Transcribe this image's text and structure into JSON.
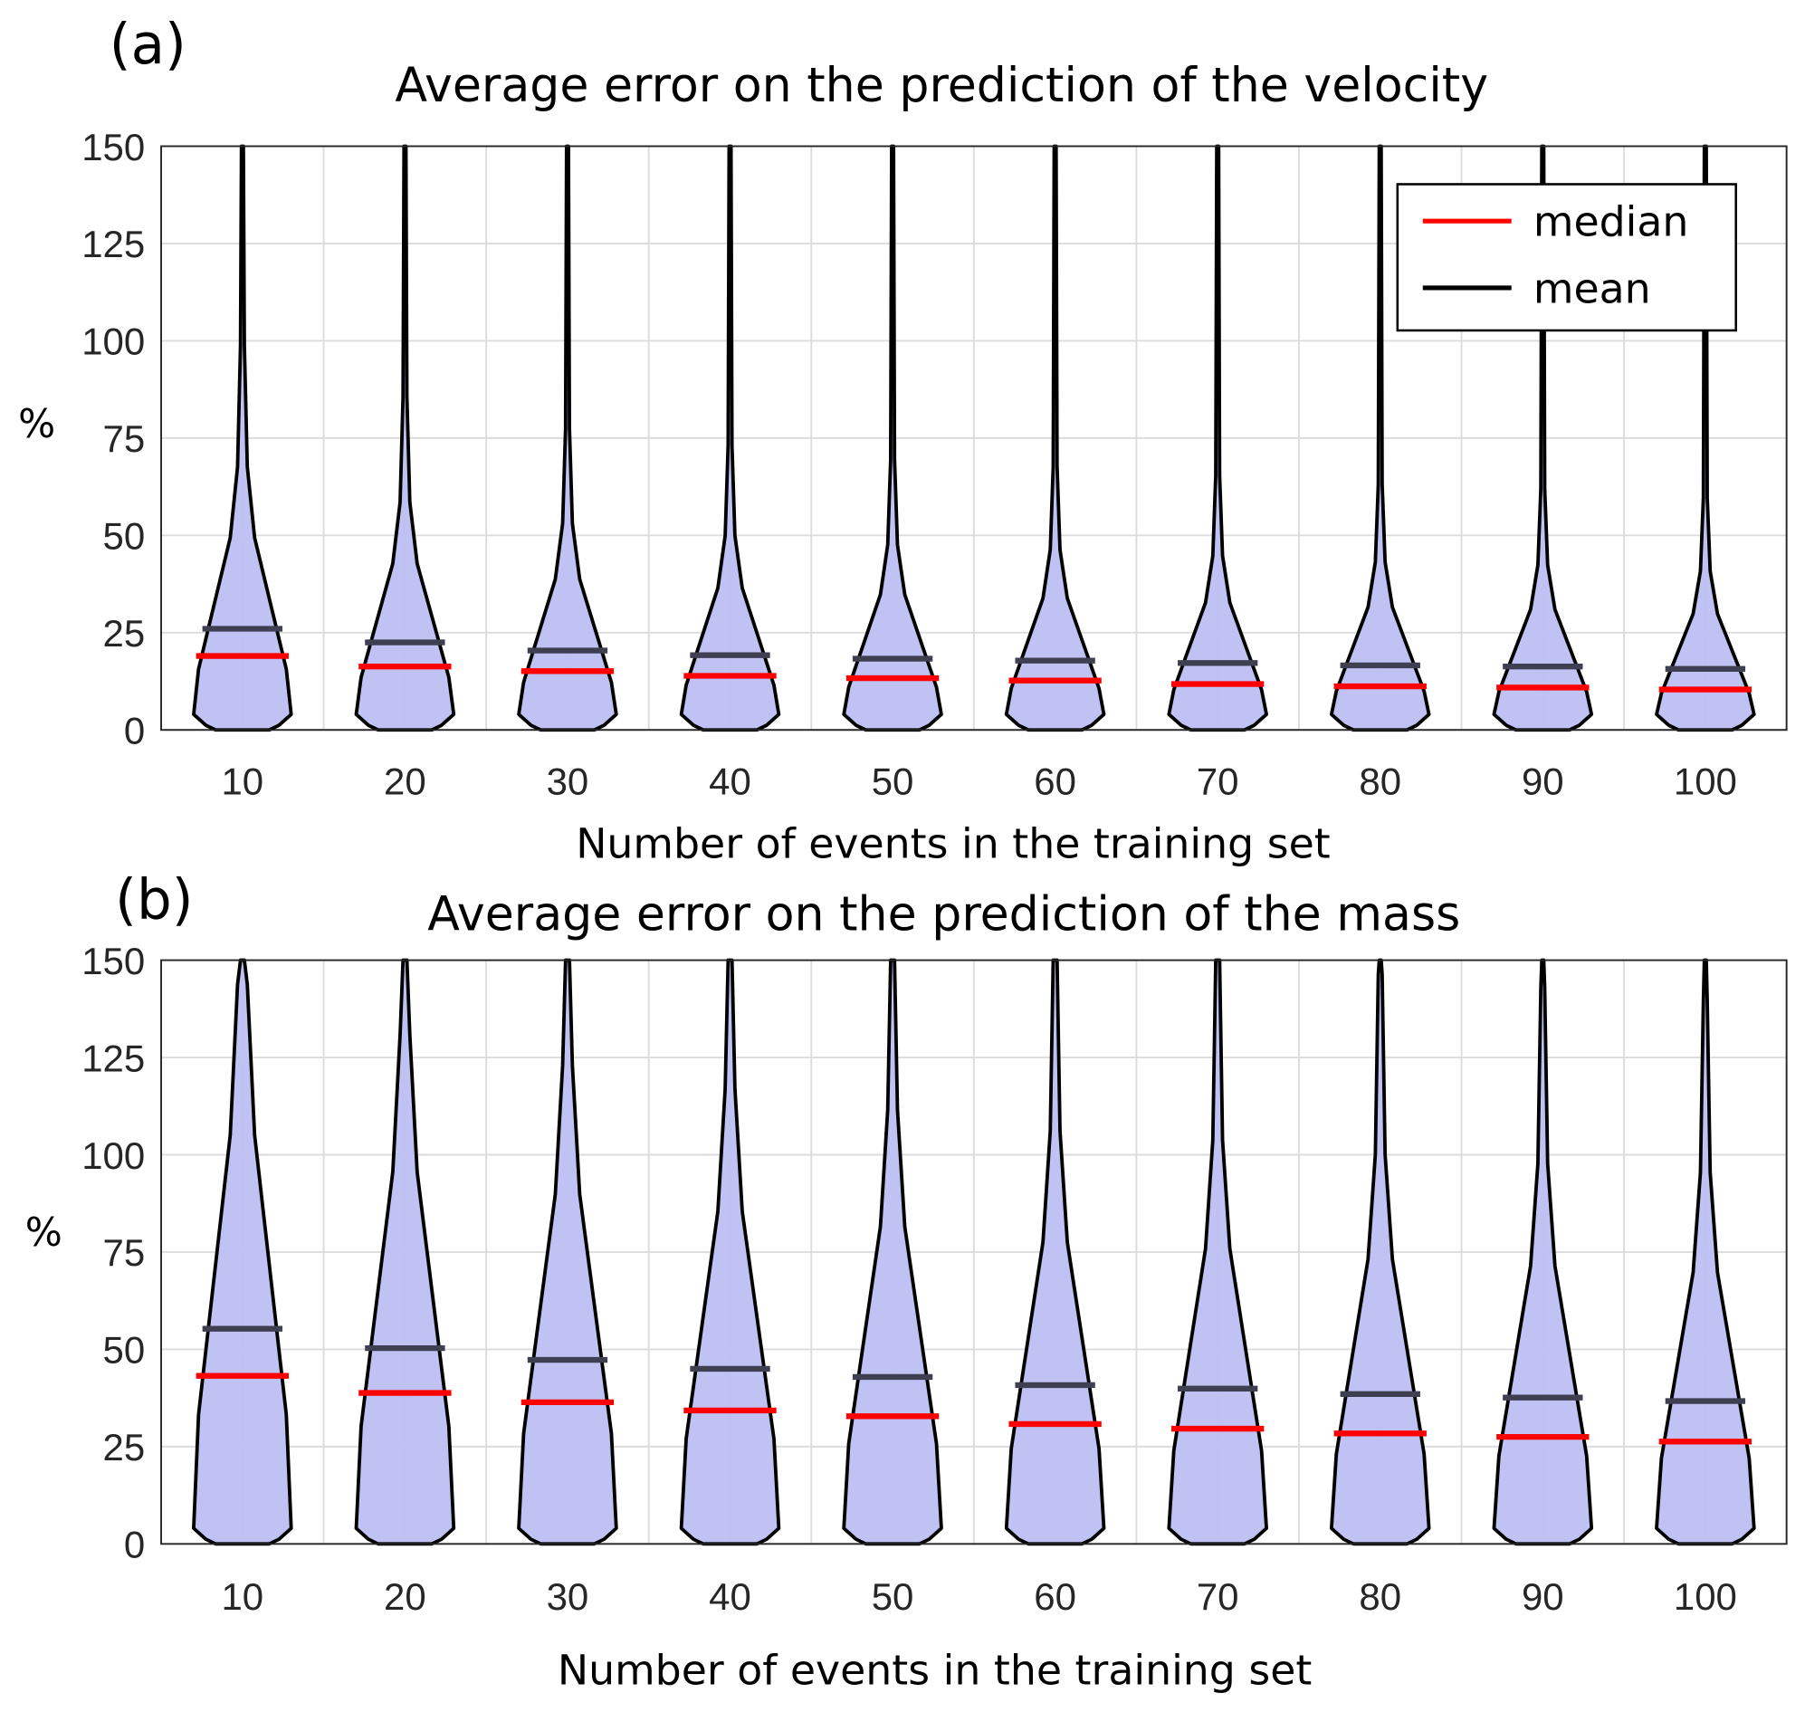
{
  "chart_data": [
    {
      "type": "violin",
      "panel_label": "(a)",
      "title": "Average error on the prediction of the velocity",
      "xlabel": "Number of events in the training set",
      "ylabel": "%",
      "categories": [
        "10",
        "20",
        "30",
        "40",
        "50",
        "60",
        "70",
        "80",
        "90",
        "100"
      ],
      "yticks": [
        "0",
        "25",
        "50",
        "75",
        "100",
        "125",
        "150"
      ],
      "ylim": [
        0,
        150
      ],
      "grid": true,
      "violin_color": "#bcbff2",
      "series": [
        {
          "name": "median",
          "color": "#ff0000",
          "values": [
            19.0,
            16.3,
            15.1,
            13.9,
            13.3,
            12.7,
            11.8,
            11.2,
            10.9,
            10.4
          ]
        },
        {
          "name": "mean",
          "color": "#000000",
          "values": [
            26.0,
            22.5,
            20.4,
            19.2,
            18.3,
            17.8,
            17.2,
            16.6,
            16.3,
            15.7
          ]
        }
      ],
      "legend": {
        "position": "top-right",
        "entries": [
          {
            "label": "median",
            "color": "#ff0000"
          },
          {
            "label": "mean",
            "color": "#000000"
          }
        ]
      }
    },
    {
      "type": "violin",
      "panel_label": "(b)",
      "title": "Average error on the prediction of the mass",
      "xlabel": "Number of events in the training set",
      "ylabel": "%",
      "categories": [
        "10",
        "20",
        "30",
        "40",
        "50",
        "60",
        "70",
        "80",
        "90",
        "100"
      ],
      "yticks": [
        "0",
        "25",
        "50",
        "75",
        "100",
        "125",
        "150"
      ],
      "ylim": [
        0,
        150
      ],
      "grid": true,
      "violin_color": "#bcbff2",
      "series": [
        {
          "name": "median",
          "color": "#ff0000",
          "values": [
            43.2,
            38.8,
            36.4,
            34.3,
            32.8,
            30.8,
            29.6,
            28.4,
            27.5,
            26.3
          ]
        },
        {
          "name": "mean",
          "color": "#000000",
          "values": [
            55.3,
            50.3,
            47.3,
            45.0,
            42.9,
            40.8,
            39.9,
            38.5,
            37.6,
            36.7
          ]
        }
      ]
    }
  ]
}
